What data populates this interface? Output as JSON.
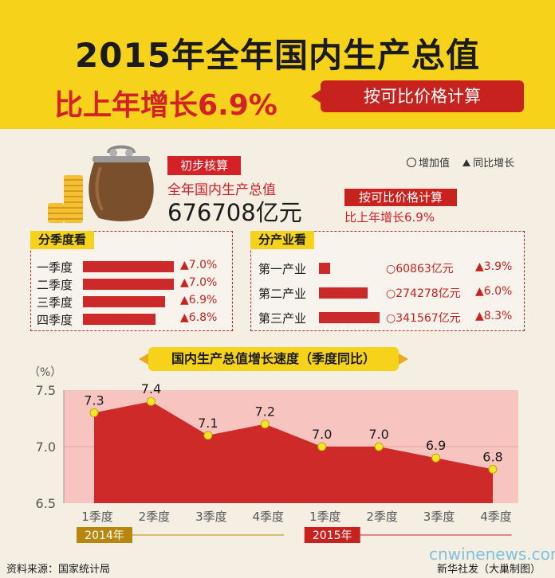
{
  "header": {
    "title": "2015年全年国内生产总值",
    "subtitle": "比上年增长6.9%",
    "calc_tag": "按可比价格计算"
  },
  "summary": {
    "prelim_tag": "初步核算",
    "gdp_label": "全年国内生产总值",
    "gdp_value": "676708亿元",
    "calc_tag": "按可比价格计算",
    "growth_label": "比上年增长6.9%",
    "legend_value": "增加值",
    "legend_growth": "同比增长"
  },
  "quarters_box": {
    "title": "分季度看",
    "rows": [
      {
        "label": "一季度",
        "growth": "▲7.0%",
        "value": 7.0
      },
      {
        "label": "二季度",
        "growth": "▲7.0%",
        "value": 7.0
      },
      {
        "label": "三季度",
        "growth": "▲6.9%",
        "value": 6.9
      },
      {
        "label": "四季度",
        "growth": "▲6.8%",
        "value": 6.8
      }
    ]
  },
  "industry_box": {
    "title": "分产业看",
    "rows": [
      {
        "label": "第一产业",
        "amount": "60863亿元",
        "growth": "▲3.9%",
        "value": 60863
      },
      {
        "label": "第二产业",
        "amount": "274278亿元",
        "growth": "▲6.0%",
        "value": 274278
      },
      {
        "label": "第三产业",
        "amount": "341567亿元",
        "growth": "▲8.3%",
        "value": 341567
      }
    ]
  },
  "chart_data": {
    "type": "area",
    "title": "国内生产总值增长速度（季度同比）",
    "ylabel": "（%）",
    "ylim": [
      6.5,
      7.5
    ],
    "yticks": [
      "7.5",
      "7.0",
      "6.5"
    ],
    "categories": [
      "1季度",
      "2季度",
      "3季度",
      "4季度",
      "1季度",
      "2季度",
      "3季度",
      "4季度"
    ],
    "values": [
      7.3,
      7.4,
      7.1,
      7.2,
      7.0,
      7.0,
      6.9,
      6.8
    ],
    "value_labels": [
      "7.3",
      "7.4",
      "7.1",
      "7.2",
      "7.0",
      "7.0",
      "6.9",
      "6.8"
    ],
    "year_groups": [
      {
        "label": "2014年",
        "start": 0,
        "end": 3
      },
      {
        "label": "2015年",
        "start": 4,
        "end": 7
      }
    ],
    "colors": {
      "area": "#cf2a2a",
      "band": "#f8c4c0",
      "marker": "#f2e628",
      "year_2014": "#b8860b",
      "year_2015": "#c8221f"
    }
  },
  "footer": {
    "source": "资料来源：国家统计局",
    "credit": "新华社发（大巢制图）",
    "watermark": "cnwinenews.com"
  }
}
